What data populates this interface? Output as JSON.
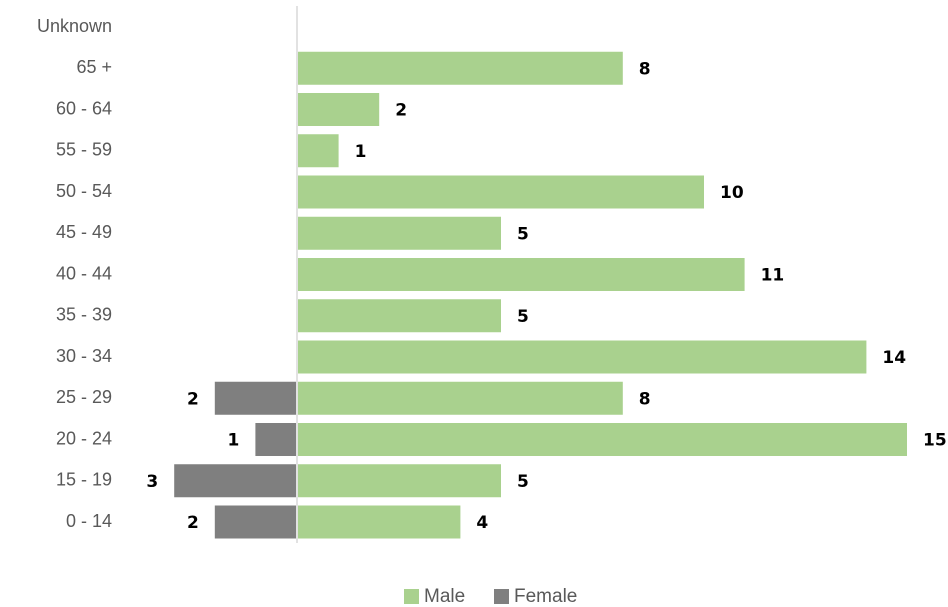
{
  "chart_data": {
    "type": "bar",
    "orientation": "horizontal",
    "layout": "population-pyramid",
    "categories": [
      "0 - 14",
      "15 - 19",
      "20 - 24",
      "25 - 29",
      "30 - 34",
      "35 - 39",
      "40 - 44",
      "45 - 49",
      "50 - 54",
      "55 - 59",
      "60 - 64",
      "65 +",
      "Unknown"
    ],
    "series": [
      {
        "name": "Male",
        "color": "#a9d18e",
        "direction": "right",
        "values": [
          4,
          5,
          15,
          8,
          14,
          5,
          11,
          5,
          10,
          1,
          2,
          8,
          null
        ]
      },
      {
        "name": "Female",
        "color": "#7f7f7f",
        "direction": "left",
        "values": [
          2,
          3,
          1,
          2,
          null,
          null,
          null,
          null,
          null,
          null,
          null,
          null,
          null
        ]
      }
    ],
    "title": "",
    "xlabel": "",
    "ylabel": "",
    "xlim": [
      -6,
      15
    ],
    "grid": false,
    "legend": "bottom-center",
    "data_labels": true
  }
}
